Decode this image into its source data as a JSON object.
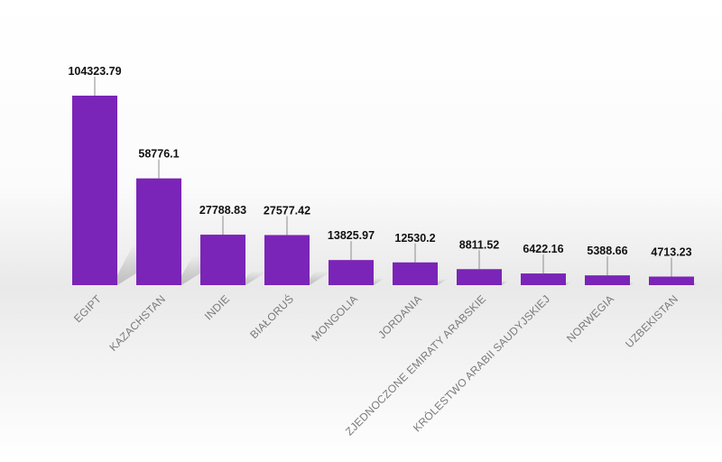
{
  "chart_data": {
    "type": "bar",
    "categories": [
      "EGIPT",
      "KAZACHSTAN",
      "INDIE",
      "BIAŁORUŚ",
      "MONGOLIA",
      "JORDANIA",
      "ZJEDNOCZONE EMIRATY ARABSKIE",
      "KRÓLESTWO ARABII SAUDYJSKIEJ",
      "NORWEGIA",
      "UZBEKISTAN"
    ],
    "values": [
      104323.79,
      58776.1,
      27788.83,
      27577.42,
      13825.97,
      12530.2,
      8811.52,
      6422.16,
      5388.66,
      4713.23
    ],
    "value_labels": [
      "104323.79",
      "58776.1",
      "27788.83",
      "27577.42",
      "13825.97",
      "12530.2",
      "8811.52",
      "6422.16",
      "5388.66",
      "4713.23"
    ],
    "ylim": [
      0,
      104323.79
    ],
    "grid": false,
    "legend": "none",
    "bar_color": "#7b24b8",
    "shadow_color": "#9a9a9a"
  }
}
